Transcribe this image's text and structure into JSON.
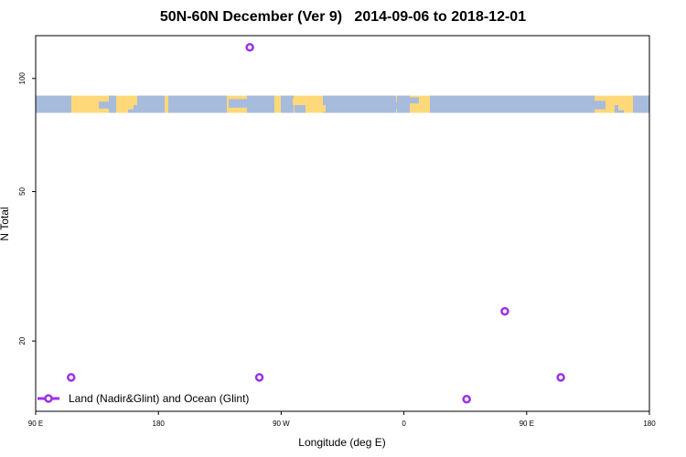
{
  "chart_data": {
    "type": "scatter",
    "title": "50N-60N December (Ver 9)   2014-09-06 to 2018-12-01",
    "xlabel": "Longitude (deg E)",
    "ylabel": "N Total",
    "x_axis": {
      "range_deg_e": [
        90,
        180
      ],
      "ticks": [
        {
          "value": 90,
          "label": "90 E"
        },
        {
          "value": 180,
          "label": "180"
        },
        {
          "value": 270,
          "label": "90 W"
        },
        {
          "value": 360,
          "label": "0"
        },
        {
          "value": 450,
          "label": "90 E"
        },
        {
          "value": 540,
          "label": "180"
        }
      ],
      "domain": [
        90,
        540
      ]
    },
    "y_axis": {
      "scale": "log",
      "ylim": [
        13,
        130
      ],
      "ticks": [
        20,
        50,
        100
      ]
    },
    "series": [
      {
        "name": "Land (Nadir&Glint) and Ocean (Glint)",
        "color": "#9b30e8",
        "marker": "open-circle",
        "points": [
          {
            "x": 116,
            "y": 16
          },
          {
            "x": 247,
            "y": 121
          },
          {
            "x": 254,
            "y": 16
          },
          {
            "x": 406,
            "y": 14
          },
          {
            "x": 434,
            "y": 24
          },
          {
            "x": 475,
            "y": 16
          }
        ]
      }
    ],
    "map_strip": {
      "description_band_y": [
        81,
        90
      ],
      "land_color": "#ffd879",
      "ocean_color": "#a7bbdc"
    },
    "legend": {
      "position": "bottom-left",
      "label": "Land (Nadir&Glint) and Ocean (Glint)"
    }
  }
}
